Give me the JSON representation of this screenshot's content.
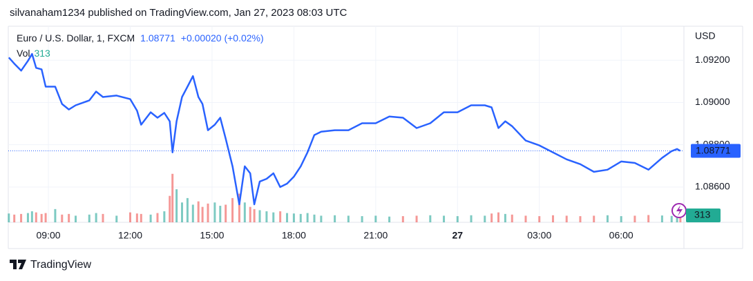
{
  "chart_data": {
    "type": "line",
    "caption": "silvanaham1234 published on TradingView.com, Jan 27, 2023 08:03 UTC",
    "title": "Euro / U.S. Dollar, 1, FXCM",
    "change": "+0.00020 (+0.02%)",
    "currency": "USD",
    "brand": "TradingView",
    "x": [
      7.55,
      7.75,
      8.0,
      8.25,
      8.4,
      8.55,
      8.75,
      8.9,
      9.25,
      9.5,
      9.75,
      10.0,
      10.5,
      10.75,
      11.0,
      11.5,
      12.0,
      12.25,
      12.4,
      12.75,
      13.0,
      13.25,
      13.45,
      13.55,
      13.7,
      13.9,
      14.1,
      14.3,
      14.5,
      14.65,
      14.85,
      15.1,
      15.3,
      15.5,
      15.75,
      16.0,
      16.2,
      16.4,
      16.55,
      16.75,
      17.0,
      17.25,
      17.5,
      17.75,
      18.0,
      18.25,
      18.5,
      18.75,
      19.0,
      19.5,
      20.0,
      20.5,
      21.0,
      21.5,
      22.0,
      22.5,
      23.0,
      23.5,
      24.0,
      24.5,
      25.0,
      25.25,
      25.5,
      25.75,
      26.0,
      26.5,
      27.0,
      27.5,
      28.0,
      28.5,
      29.0,
      29.5,
      30.0,
      30.5,
      31.0,
      31.5,
      31.85,
      32.05,
      32.17
    ],
    "series": [
      {
        "name": "Euro / U.S. Dollar",
        "color": "#2962ff",
        "values": [
          1.09213,
          1.09184,
          1.09151,
          1.09197,
          1.0923,
          1.09164,
          1.09157,
          1.09075,
          1.09075,
          1.08993,
          1.08967,
          1.08987,
          1.0901,
          1.09052,
          1.09026,
          1.09033,
          1.09016,
          1.08961,
          1.08895,
          1.08954,
          1.08928,
          1.08951,
          1.08911,
          1.08764,
          1.08911,
          1.09026,
          1.09075,
          1.09125,
          1.09026,
          1.08993,
          1.08869,
          1.08895,
          1.08928,
          1.08829,
          1.08698,
          1.08518,
          1.08698,
          1.08665,
          1.08518,
          1.08626,
          1.08639,
          1.08665,
          1.086,
          1.08616,
          1.08649,
          1.08698,
          1.08764,
          1.08846,
          1.08862,
          1.08869,
          1.08869,
          1.08902,
          1.08902,
          1.08934,
          1.08928,
          1.08879,
          1.08902,
          1.08954,
          1.08954,
          1.08987,
          1.08987,
          1.08977,
          1.08879,
          1.08911,
          1.08888,
          1.0882,
          1.08797,
          1.08764,
          1.08731,
          1.08708,
          1.08672,
          1.08682,
          1.08721,
          1.08714,
          1.08682,
          1.08738,
          1.0877,
          1.0878,
          1.08771
        ]
      }
    ],
    "volume": {
      "name": "Vol",
      "up_color": "#26a69a",
      "down_color": "#ef5350",
      "label_color": "#22ab94",
      "ylim": [
        0,
        2600
      ],
      "values": [
        400,
        350,
        380,
        420,
        500,
        450,
        380,
        420,
        600,
        350,
        380,
        300,
        350,
        420,
        380,
        300,
        450,
        400,
        380,
        350,
        420,
        500,
        1200,
        2200,
        1500,
        900,
        1100,
        800,
        950,
        700,
        850,
        900,
        750,
        800,
        1100,
        1300,
        900,
        700,
        600,
        550,
        500,
        450,
        500,
        420,
        400,
        380,
        420,
        350,
        300,
        320,
        300,
        280,
        300,
        260,
        280,
        300,
        320,
        300,
        280,
        320,
        300,
        400,
        450,
        380,
        350,
        300,
        280,
        320,
        300,
        280,
        300,
        320,
        280,
        300,
        330,
        310,
        290,
        300,
        313
      ]
    },
    "xlim": [
      7.53,
      32.3
    ],
    "xticks": [
      {
        "value": 9,
        "label": "09:00"
      },
      {
        "value": 12,
        "label": "12:00"
      },
      {
        "value": 15,
        "label": "15:00"
      },
      {
        "value": 18,
        "label": "18:00"
      },
      {
        "value": 21,
        "label": "21:00"
      },
      {
        "value": 24,
        "label": "27"
      },
      {
        "value": 27,
        "label": "03:00"
      },
      {
        "value": 30,
        "label": "06:00"
      }
    ],
    "ylim": [
      1.08433,
      1.09361
    ],
    "yticks": [
      {
        "value": 1.086,
        "label": "1.08600"
      },
      {
        "value": 1.088,
        "label": "1.08800"
      },
      {
        "value": 1.09,
        "label": "1.09000"
      },
      {
        "value": 1.092,
        "label": "1.09200"
      }
    ],
    "grid": true
  }
}
